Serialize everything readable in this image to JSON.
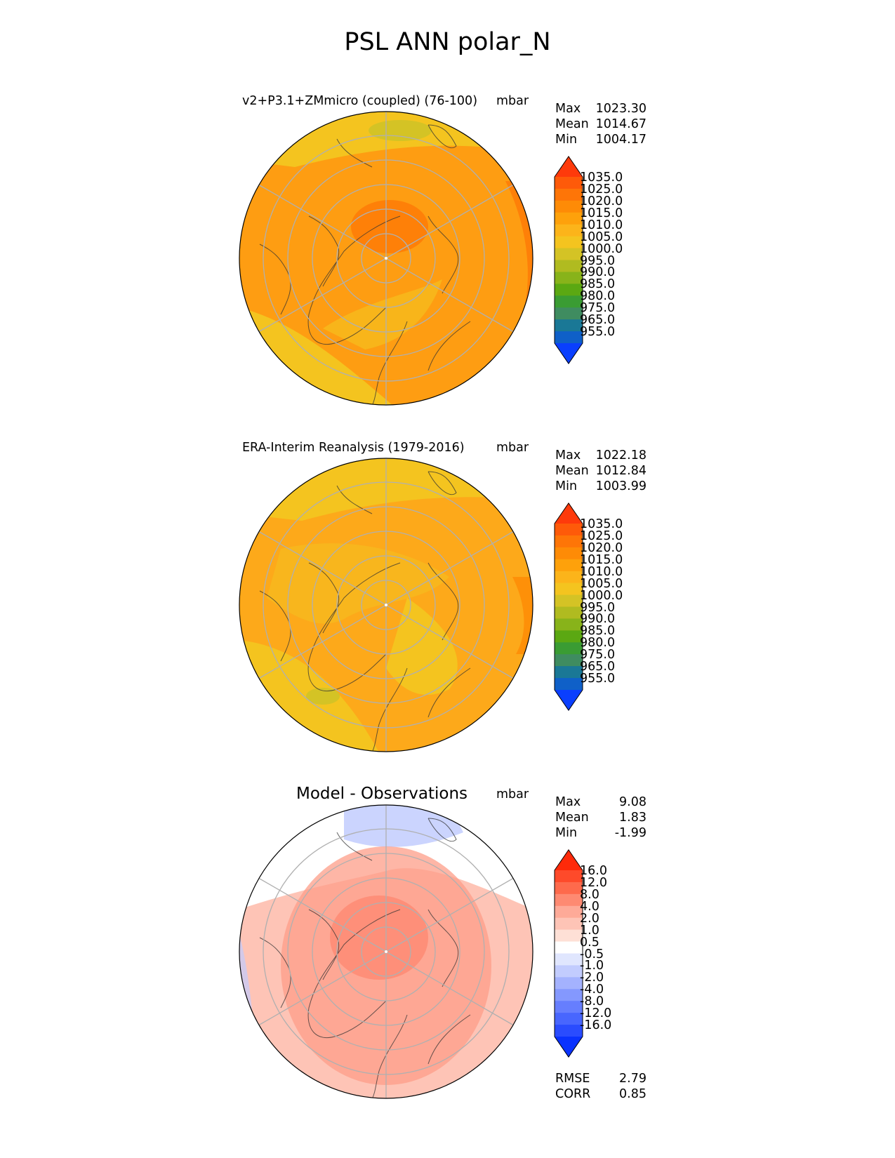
{
  "figure": {
    "title": "PSL ANN polar_N"
  },
  "panels": [
    {
      "title": "v2+P3.1+ZMmicro (coupled) (76-100)",
      "units": "mbar",
      "stats": [
        {
          "label": "Max",
          "value": "1023.30"
        },
        {
          "label": "Mean",
          "value": "1014.67"
        },
        {
          "label": "Min",
          "value": "1004.17"
        }
      ],
      "colorbar": {
        "ticks": [
          "1035.0",
          "1025.0",
          "1020.0",
          "1015.0",
          "1010.0",
          "1005.0",
          "1000.0",
          "995.0",
          "990.0",
          "985.0",
          "980.0",
          "975.0",
          "965.0",
          "955.0"
        ],
        "colors": [
          "#fe3a0b",
          "#fe5a09",
          "#fe7507",
          "#fe8b06",
          "#fea10b",
          "#fcb41a",
          "#f4c41f",
          "#d4c325",
          "#b0bb20",
          "#88b31a",
          "#5ba812",
          "#3a9c33",
          "#3f8c60",
          "#1a7896",
          "#0f60c8",
          "#0a3ffe"
        ]
      },
      "map_colors": {
        "base": "#fe9d12",
        "high": "#fe8008",
        "low": "#f4c41f",
        "lower": "#d4c325"
      }
    },
    {
      "title": "ERA-Interim Reanalysis (1979-2016)",
      "units": "mbar",
      "stats": [
        {
          "label": "Max",
          "value": "1022.18"
        },
        {
          "label": "Mean",
          "value": "1012.84"
        },
        {
          "label": "Min",
          "value": "1003.99"
        }
      ],
      "colorbar": {
        "ticks": [
          "1035.0",
          "1025.0",
          "1020.0",
          "1015.0",
          "1010.0",
          "1005.0",
          "1000.0",
          "995.0",
          "990.0",
          "985.0",
          "980.0",
          "975.0",
          "965.0",
          "955.0"
        ],
        "colors": [
          "#fe3a0b",
          "#fe5a09",
          "#fe7507",
          "#fe8b06",
          "#fea10b",
          "#fcb41a",
          "#f4c41f",
          "#d4c325",
          "#b0bb20",
          "#88b31a",
          "#5ba812",
          "#3a9c33",
          "#3f8c60",
          "#1a7896",
          "#0f60c8",
          "#0a3ffe"
        ]
      },
      "map_colors": {
        "base": "#fda91a",
        "high": "#fe9008",
        "low": "#f4c41f",
        "lower": "#d4c325"
      }
    },
    {
      "title": "Model - Observations",
      "units": "mbar",
      "stats": [
        {
          "label": "Max",
          "value": "9.08"
        },
        {
          "label": "Mean",
          "value": "1.83"
        },
        {
          "label": "Min",
          "value": "-1.99"
        }
      ],
      "colorbar": {
        "ticks": [
          "16.0",
          "12.0",
          "8.0",
          "4.0",
          "2.0",
          "1.0",
          "0.5",
          "-0.5",
          "-1.0",
          "-2.0",
          "-4.0",
          "-8.0",
          "-12.0",
          "-16.0"
        ],
        "colors": [
          "#fe2a0a",
          "#fe4a2a",
          "#fe6a4c",
          "#fe8a72",
          "#feaa98",
          "#fec4b6",
          "#fee0d6",
          "#ffffff",
          "#e0e6fe",
          "#c2ccfe",
          "#a4b2fe",
          "#8498fe",
          "#667efe",
          "#4866fe",
          "#2a4cfe",
          "#0a32fe"
        ]
      },
      "map_colors": {
        "base": "#fec4b6",
        "high": "#fe9e88",
        "low": "#ffffff",
        "lower": "#c2ccfe"
      },
      "extra_stats": [
        {
          "label": "RMSE",
          "value": "2.79"
        },
        {
          "label": "CORR",
          "value": "0.85"
        }
      ]
    }
  ]
}
